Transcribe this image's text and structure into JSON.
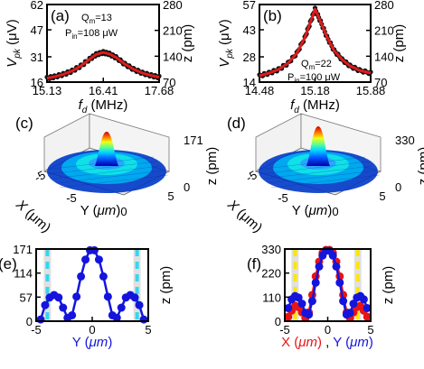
{
  "chart_data": [
    {
      "panel": "(a)",
      "type": "scatter",
      "xlabel": "f_d (MHz)",
      "ylabel_left": "V_pk (μV)",
      "ylabel_right": "z (pm)",
      "x_ticks": [
        "15.13",
        "16.41",
        "17.68"
      ],
      "y_ticks_left": [
        "16",
        "31",
        "47",
        "62"
      ],
      "y_ticks_right": [
        "70",
        "140",
        "210",
        "280"
      ],
      "xlim": [
        15.13,
        17.68
      ],
      "ylim": [
        16,
        62
      ],
      "annotations": [
        "Q_m=13",
        "P_in=108 μW"
      ],
      "series": [
        {
          "x": [
            15.13,
            15.3,
            15.5,
            15.7,
            15.9,
            16.1,
            16.25,
            16.41,
            16.55,
            16.7,
            16.9,
            17.1,
            17.3,
            17.5,
            17.68
          ],
          "y": [
            18.3,
            19.2,
            20.6,
            22.6,
            25.6,
            29.6,
            32.4,
            33.6,
            32.7,
            30.6,
            26.7,
            23.6,
            21.4,
            19.9,
            18.9
          ]
        }
      ],
      "fit_color": "#dd1c1c"
    },
    {
      "panel": "(b)",
      "type": "scatter",
      "xlabel": "f_d (MHz)",
      "ylabel_left": "V_pk (μV)",
      "ylabel_right": "z (pm)",
      "x_ticks": [
        "14.48",
        "15.18",
        "15.88"
      ],
      "y_ticks_left": [
        "14",
        "28",
        "43",
        "57"
      ],
      "y_ticks_right": [
        "70",
        "140",
        "210",
        "280"
      ],
      "xlim": [
        14.48,
        15.88
      ],
      "ylim": [
        14,
        57
      ],
      "annotations": [
        "Q_m=22",
        "P_in=100 μW"
      ],
      "series": [
        {
          "x": [
            14.48,
            14.6,
            14.72,
            14.84,
            14.95,
            15.05,
            15.12,
            15.18,
            15.25,
            15.33,
            15.42,
            15.52,
            15.62,
            15.74,
            15.88
          ],
          "y": [
            17.5,
            19,
            21,
            24.5,
            30,
            38.5,
            47,
            54.5,
            47.5,
            39,
            31.5,
            26.5,
            23,
            20.5,
            19
          ]
        }
      ],
      "fit_color": "#dd1c1c"
    },
    {
      "panel": "(c)",
      "type": "surface",
      "xlabel": "X (μm)",
      "ylabel": "Y (μm)",
      "zlabel": "z (pm)",
      "x_ticks": [
        "-5",
        "0",
        "5"
      ],
      "y_ticks": [
        "-5",
        "0",
        "5"
      ],
      "z_ticks": [
        "0",
        "171"
      ],
      "zlim": [
        0,
        171
      ]
    },
    {
      "panel": "(d)",
      "type": "surface",
      "xlabel": "X (μm)",
      "ylabel": "Y (μm)",
      "zlabel": "z (pm)",
      "x_ticks": [
        "-5",
        "0",
        "5"
      ],
      "y_ticks": [
        "-5",
        "0",
        "5"
      ],
      "z_ticks": [
        "0",
        "330"
      ],
      "zlim": [
        0,
        330
      ]
    },
    {
      "panel": "(e)",
      "type": "line",
      "xlabel": "Y (μm)",
      "ylabel": "z (pm)",
      "x_ticks": [
        "-5",
        "0",
        "5"
      ],
      "y_ticks": [
        "0",
        "57",
        "114",
        "171"
      ],
      "xlim": [
        -5,
        5
      ],
      "ylim": [
        0,
        171
      ],
      "vlines": [
        -4,
        4
      ],
      "vline_color": "#33d6f0",
      "series": [
        {
          "name": "Y",
          "color": "#1414dd",
          "x": [
            -4.6,
            -4.2,
            -3.8,
            -3.4,
            -3.0,
            -2.6,
            -2.2,
            -1.8,
            -1.4,
            -1.0,
            -0.6,
            -0.2,
            0.2,
            0.6,
            1.0,
            1.4,
            1.8,
            2.2,
            2.6,
            3.0,
            3.4,
            3.8,
            4.2,
            4.6
          ],
          "y": [
            4,
            38,
            56,
            62,
            56,
            32,
            8,
            14,
            58,
            106,
            146,
            168,
            168,
            146,
            106,
            58,
            14,
            8,
            32,
            56,
            62,
            56,
            38,
            4
          ]
        }
      ]
    },
    {
      "panel": "(f)",
      "type": "line",
      "xlabel": "X (μm) , Y (μm)",
      "ylabel": "z (pm)",
      "x_ticks": [
        "-5",
        "0",
        "5"
      ],
      "y_ticks": [
        "0",
        "110",
        "220",
        "330"
      ],
      "xlim": [
        -5,
        5
      ],
      "ylim": [
        0,
        330
      ],
      "vlines": [
        -3.8,
        3.5
      ],
      "vline_color": "#ffe600",
      "series": [
        {
          "name": "X",
          "color": "#e81414",
          "x": [
            -4.6,
            -4.2,
            -3.8,
            -3.4,
            -3.0,
            -2.6,
            -2.2,
            -1.8,
            -1.4,
            -1.0,
            -0.6,
            -0.2,
            0.2,
            0.6,
            1.0,
            1.4,
            1.8,
            2.2,
            2.6,
            3.0,
            3.4,
            3.8,
            4.2,
            4.6
          ],
          "y": [
            20,
            48,
            70,
            64,
            40,
            14,
            40,
            120,
            205,
            272,
            312,
            326,
            326,
            312,
            272,
            205,
            120,
            40,
            14,
            40,
            64,
            70,
            48,
            20
          ]
        },
        {
          "name": "Y",
          "color": "#1414dd",
          "x": [
            -4.6,
            -4.2,
            -3.8,
            -3.4,
            -3.0,
            -2.6,
            -2.2,
            -1.8,
            -1.4,
            -1.0,
            -0.6,
            -0.2,
            0.2,
            0.6,
            1.0,
            1.4,
            1.8,
            2.2,
            2.6,
            3.0,
            3.4,
            3.8,
            4.2,
            4.6
          ],
          "y": [
            60,
            100,
            115,
            108,
            80,
            38,
            30,
            92,
            176,
            250,
            300,
            322,
            322,
            300,
            250,
            176,
            92,
            30,
            38,
            80,
            108,
            115,
            100,
            60
          ]
        }
      ]
    }
  ],
  "xlabel_parts_f": {
    "x": "X (μm)",
    "sep": ",",
    "y": "Y (μm)",
    "x_color": "#e81414",
    "y_color": "#1414dd"
  }
}
